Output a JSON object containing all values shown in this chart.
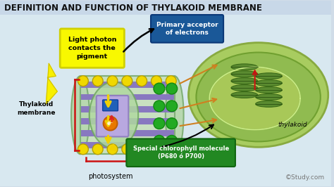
{
  "title": "DEFINITION AND FUNCTION OF THYLAKOID MEMBRANE",
  "title_fontsize": 8.5,
  "title_color": "#111111",
  "title_bg": "#c8d8e8",
  "bg_color": "#d8e8f0",
  "labels": {
    "light_photon": "Light photon\ncontacts the\npigment",
    "primary_acceptor": "Primary acceptor\nof electrons",
    "thylakoid_membrane": "Thylakoid\nmembrane",
    "thylakoid": "thylakoid",
    "photosystem": "photosystem",
    "special_chlorophyll": "Special chlorophyll molecule\n(P680 ó P700)",
    "study_com": "©Study.com"
  },
  "colors": {
    "yellow_box": "#f8f800",
    "yellow_box_border": "#d0d000",
    "green_box": "#228822",
    "blue_box": "#1a5898",
    "white_text": "#ffffff",
    "black_text": "#111111",
    "membrane_outer_bg": "#c0e0b8",
    "membrane_outer_border": "#80b870",
    "purple_stripe": "#8878c0",
    "yellow_circle": "#f0d800",
    "yellow_circle_border": "#b8a000",
    "green_dot": "#22aa22",
    "green_dot_border": "#118811",
    "red_bracket": "#cc1111",
    "orange_arrow": "#d08020",
    "red_arrow": "#cc1111",
    "yellow_arrow": "#f0d000",
    "orange_center": "#e87800",
    "blue_sq": "#2060b8",
    "purple_center": "#a090d8",
    "photosystem_oval_bg": "#b8ddb0",
    "photosystem_oval_border": "#70a860",
    "bg_main": "#d0dce8"
  }
}
